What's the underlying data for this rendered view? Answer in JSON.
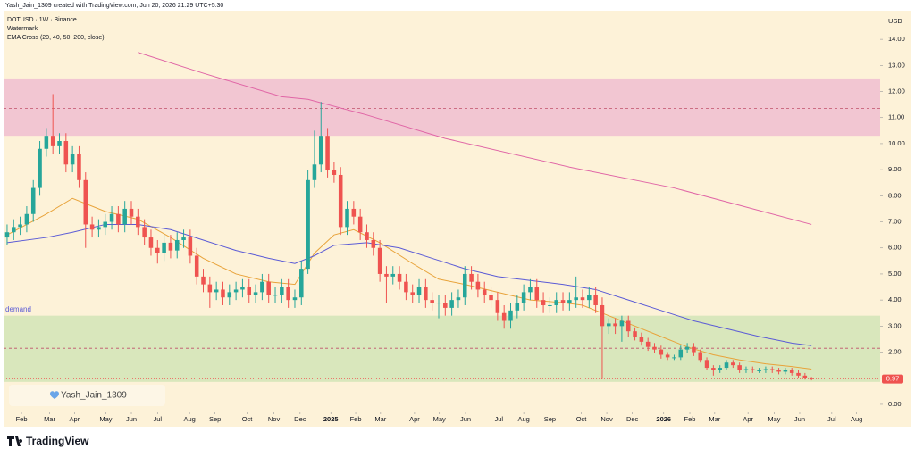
{
  "header": {
    "credit": "Yash_Jain_1309 created with TradingView.com, Jun 20, 2026 21:29 UTC+5:30",
    "symbol": "DOTUSD · 1W · Binance",
    "indicator_1": "Watermark",
    "indicator_2": "EMA Cross (20, 40, 50, 200, close)"
  },
  "footer": {
    "logo": "TradingView"
  },
  "watermark_text": "Yash_Jain_1309",
  "chart_data": {
    "type": "candlestick",
    "currency": "USD",
    "up_color": "#26a69a",
    "down_color": "#ef5350",
    "background": "#fdf2d8",
    "grid": false,
    "xlim": [
      -0.54,
      133.5
    ],
    "ylim": [
      -0.31,
      15.1
    ],
    "yticks": [
      {
        "value": 0,
        "label": "0.00"
      },
      {
        "value": 1,
        "label": "1.00"
      },
      {
        "value": 2,
        "label": "2.00"
      },
      {
        "value": 3,
        "label": "3.00"
      },
      {
        "value": 4,
        "label": "4.00"
      },
      {
        "value": 5,
        "label": "5.00"
      },
      {
        "value": 6,
        "label": "6.00"
      },
      {
        "value": 7,
        "label": "7.00"
      },
      {
        "value": 8,
        "label": "8.00"
      },
      {
        "value": 9,
        "label": "9.00"
      },
      {
        "value": 10,
        "label": "10.00"
      },
      {
        "value": 11,
        "label": "11.00"
      },
      {
        "value": 12,
        "label": "12.00"
      },
      {
        "value": 13,
        "label": "13.00"
      },
      {
        "value": 14,
        "label": "14.00"
      }
    ],
    "xticks": [
      {
        "value": 2.2,
        "label": "Feb"
      },
      {
        "value": 6.5,
        "label": "Mar"
      },
      {
        "value": 10.3,
        "label": "Apr"
      },
      {
        "value": 15.1,
        "label": "May"
      },
      {
        "value": 19,
        "label": "Jun"
      },
      {
        "value": 23,
        "label": "Jul"
      },
      {
        "value": 27.9,
        "label": "Aug"
      },
      {
        "value": 31.8,
        "label": "Sep"
      },
      {
        "value": 36.7,
        "label": "Oct"
      },
      {
        "value": 40.8,
        "label": "Nov"
      },
      {
        "value": 44.8,
        "label": "Dec"
      },
      {
        "value": 49.5,
        "label": "2025"
      },
      {
        "value": 53.3,
        "label": "Feb"
      },
      {
        "value": 57.1,
        "label": "Mar"
      },
      {
        "value": 62.3,
        "label": "Apr"
      },
      {
        "value": 66.1,
        "label": "May"
      },
      {
        "value": 70.1,
        "label": "Jun"
      },
      {
        "value": 75.2,
        "label": "Jul"
      },
      {
        "value": 79,
        "label": "Aug"
      },
      {
        "value": 83,
        "label": "Sep"
      },
      {
        "value": 87.8,
        "label": "Oct"
      },
      {
        "value": 91.7,
        "label": "Nov"
      },
      {
        "value": 95.6,
        "label": "Dec"
      },
      {
        "value": 100.4,
        "label": "2026"
      },
      {
        "value": 104.4,
        "label": "Feb"
      },
      {
        "value": 108.2,
        "label": "Mar"
      },
      {
        "value": 113.3,
        "label": "Apr"
      },
      {
        "value": 117.3,
        "label": "May"
      },
      {
        "value": 121.2,
        "label": "Jun"
      },
      {
        "value": 126.1,
        "label": "Jul"
      },
      {
        "value": 129.9,
        "label": "Aug"
      }
    ],
    "open": [
      6.4,
      6.6,
      6.8,
      6.9,
      7.3,
      8.3,
      9.8,
      10.3,
      9.9,
      10.1,
      9.2,
      9.6,
      8.6,
      6.9,
      6.7,
      6.8,
      7.0,
      7.3,
      6.9,
      7.5,
      7.2,
      6.8,
      6.4,
      6.0,
      5.8,
      6.2,
      5.9,
      6.3,
      6.4,
      5.7,
      4.9,
      4.6,
      4.3,
      4.4,
      4.1,
      4.3,
      4.4,
      4.5,
      4.2,
      4.3,
      4.7,
      4.2,
      4.2,
      4.5,
      4.0,
      4.1,
      5.2,
      8.6,
      9.2,
      10.3,
      9.0,
      8.8,
      6.8,
      7.5,
      7.2,
      6.6,
      6.3,
      6.0,
      5.0,
      4.9,
      5.0,
      4.7,
      4.3,
      4.2,
      4.5,
      4.0,
      3.9,
      3.9,
      3.7,
      4.0,
      4.1,
      5.0,
      4.7,
      4.4,
      4.2,
      4.0,
      3.5,
      3.2,
      3.6,
      3.9,
      4.3,
      4.5,
      4.0,
      3.8,
      3.8,
      4.0,
      3.9,
      4.0,
      4.1,
      4.0,
      4.2,
      3.8,
      3.0,
      3.1,
      3.0,
      3.2,
      2.8,
      2.6,
      2.4,
      2.2,
      2.1,
      1.9,
      1.8,
      1.8,
      2.1,
      2.2,
      2.0,
      1.7,
      1.4,
      1.3,
      1.4,
      1.6,
      1.5,
      1.3,
      1.35,
      1.3,
      1.3,
      1.35,
      1.3,
      1.25,
      1.3,
      1.2,
      1.1,
      1.0
    ],
    "high": [
      6.9,
      7.1,
      7.2,
      7.6,
      8.6,
      10.1,
      10.6,
      11.9,
      10.4,
      10.4,
      9.9,
      9.9,
      8.9,
      7.2,
      7.1,
      7.3,
      7.6,
      7.6,
      7.8,
      7.8,
      7.5,
      7.1,
      6.7,
      6.3,
      6.5,
      6.5,
      6.6,
      6.7,
      6.7,
      6.0,
      5.2,
      4.9,
      4.7,
      4.7,
      4.6,
      4.7,
      4.8,
      4.8,
      4.6,
      5.0,
      5.0,
      4.5,
      4.8,
      4.8,
      4.4,
      5.5,
      9.0,
      10.5,
      11.6,
      10.6,
      9.3,
      9.1,
      7.8,
      7.8,
      7.5,
      6.9,
      6.6,
      6.3,
      5.3,
      5.3,
      5.3,
      5.0,
      4.6,
      4.8,
      4.8,
      4.3,
      4.2,
      4.2,
      4.3,
      4.4,
      5.3,
      5.3,
      5.0,
      4.7,
      4.5,
      4.3,
      3.8,
      3.9,
      4.2,
      4.6,
      4.8,
      4.8,
      4.3,
      4.1,
      4.3,
      4.3,
      4.3,
      4.9,
      4.4,
      4.5,
      4.5,
      4.1,
      3.3,
      3.3,
      3.4,
      3.4,
      2.95,
      2.75,
      2.55,
      2.35,
      2.25,
      2.0,
      1.9,
      2.25,
      2.35,
      2.35,
      2.1,
      1.8,
      1.5,
      1.5,
      1.7,
      1.7,
      1.6,
      1.45,
      1.45,
      1.4,
      1.45,
      1.45,
      1.4,
      1.4,
      1.4,
      1.3,
      1.2,
      1.05
    ],
    "low": [
      6.1,
      6.3,
      6.5,
      6.6,
      7.0,
      8.0,
      9.5,
      9.6,
      9.6,
      8.9,
      8.9,
      8.3,
      6.0,
      6.4,
      6.4,
      6.5,
      6.7,
      6.6,
      6.6,
      6.9,
      6.5,
      6.1,
      5.7,
      5.4,
      5.5,
      5.6,
      5.6,
      6.0,
      5.4,
      4.6,
      4.3,
      3.7,
      4.0,
      3.8,
      3.8,
      4.0,
      4.1,
      3.9,
      3.9,
      4.0,
      3.9,
      3.9,
      3.9,
      3.7,
      3.7,
      3.8,
      5.0,
      8.3,
      8.9,
      8.7,
      8.5,
      6.5,
      6.5,
      6.9,
      6.3,
      6.0,
      5.7,
      4.7,
      3.9,
      4.6,
      4.4,
      4.0,
      3.9,
      3.9,
      3.7,
      3.6,
      3.3,
      3.4,
      3.4,
      3.7,
      3.8,
      4.4,
      4.1,
      3.9,
      3.7,
      3.2,
      2.9,
      2.9,
      3.3,
      3.6,
      4.0,
      3.7,
      3.5,
      3.5,
      3.5,
      3.6,
      3.6,
      3.7,
      3.7,
      3.7,
      3.5,
      0.97,
      2.7,
      2.7,
      2.4,
      2.6,
      2.45,
      2.25,
      2.05,
      1.95,
      1.75,
      1.7,
      1.7,
      1.7,
      1.95,
      1.85,
      1.6,
      1.3,
      1.1,
      1.2,
      1.3,
      1.4,
      1.2,
      1.2,
      1.2,
      1.2,
      1.2,
      1.2,
      1.15,
      1.15,
      1.1,
      1.0,
      0.95,
      0.92
    ],
    "close": [
      6.6,
      6.8,
      6.9,
      7.3,
      8.3,
      9.8,
      10.3,
      9.9,
      10.1,
      9.2,
      9.6,
      8.6,
      6.9,
      6.7,
      6.8,
      7.0,
      7.3,
      6.9,
      7.5,
      7.2,
      6.8,
      6.4,
      6.0,
      5.8,
      6.2,
      5.9,
      6.3,
      6.4,
      5.7,
      4.9,
      4.6,
      4.3,
      4.4,
      4.1,
      4.3,
      4.4,
      4.5,
      4.2,
      4.3,
      4.7,
      4.2,
      4.2,
      4.5,
      4.0,
      4.1,
      5.2,
      8.6,
      9.2,
      10.3,
      9.0,
      8.8,
      6.8,
      7.5,
      7.2,
      6.6,
      6.3,
      6.0,
      5.0,
      4.9,
      5.0,
      4.7,
      4.3,
      4.2,
      4.5,
      4.0,
      3.9,
      3.9,
      3.7,
      4.0,
      4.1,
      5.0,
      4.7,
      4.4,
      4.2,
      4.0,
      3.5,
      3.2,
      3.6,
      3.9,
      4.3,
      4.5,
      4.0,
      3.8,
      3.8,
      4.0,
      3.9,
      4.0,
      4.1,
      4.0,
      4.2,
      3.8,
      3.0,
      3.1,
      3.0,
      3.2,
      2.8,
      2.6,
      2.4,
      2.2,
      2.1,
      1.9,
      1.8,
      1.8,
      2.1,
      2.2,
      2.0,
      1.7,
      1.4,
      1.3,
      1.4,
      1.6,
      1.5,
      1.3,
      1.35,
      1.3,
      1.3,
      1.35,
      1.3,
      1.25,
      1.3,
      1.2,
      1.1,
      1.0,
      0.97
    ],
    "lines": [
      {
        "color": "#e8a33a",
        "x": [
          0,
          6,
          10,
          15,
          20,
          25,
          30,
          35,
          40,
          44,
          47,
          50,
          53,
          57,
          62,
          66,
          70,
          75,
          80,
          85,
          88,
          92,
          96,
          100,
          104,
          108,
          112,
          116,
          120,
          123
        ],
        "values": [
          6.5,
          7.3,
          7.9,
          7.4,
          7.1,
          6.4,
          5.6,
          5.0,
          4.7,
          4.6,
          5.8,
          6.5,
          6.7,
          6.2,
          5.4,
          4.8,
          4.6,
          4.3,
          4.0,
          3.9,
          3.8,
          3.4,
          3.0,
          2.6,
          2.2,
          1.9,
          1.7,
          1.55,
          1.45,
          1.35
        ]
      },
      {
        "color": "#5b5bd6",
        "x": [
          0,
          6,
          10,
          15,
          20,
          25,
          30,
          35,
          40,
          44,
          47,
          50,
          55,
          60,
          65,
          70,
          75,
          80,
          85,
          90,
          95,
          100,
          105,
          110,
          115,
          120,
          123
        ],
        "values": [
          6.2,
          6.4,
          6.6,
          6.9,
          6.9,
          6.7,
          6.3,
          5.9,
          5.6,
          5.4,
          5.7,
          6.1,
          6.2,
          6.0,
          5.6,
          5.2,
          4.9,
          4.75,
          4.6,
          4.4,
          4.0,
          3.6,
          3.2,
          2.9,
          2.6,
          2.35,
          2.25
        ]
      },
      {
        "color": "#e066a6",
        "x": [
          20,
          30,
          42,
          46,
          55,
          67,
          86,
          102,
          123
        ],
        "values": [
          13.5,
          12.7,
          11.8,
          11.7,
          11.1,
          10.2,
          9.1,
          8.3,
          6.9
        ]
      }
    ],
    "zones": [
      {
        "from": 10.3,
        "to": 12.5,
        "line": 11.35,
        "color": "#f2c6d2"
      },
      {
        "label": "demand",
        "from": 0.86,
        "to": 3.4,
        "line": 2.15,
        "color": "#d9e7bc"
      }
    ],
    "last_price": 0.97
  }
}
